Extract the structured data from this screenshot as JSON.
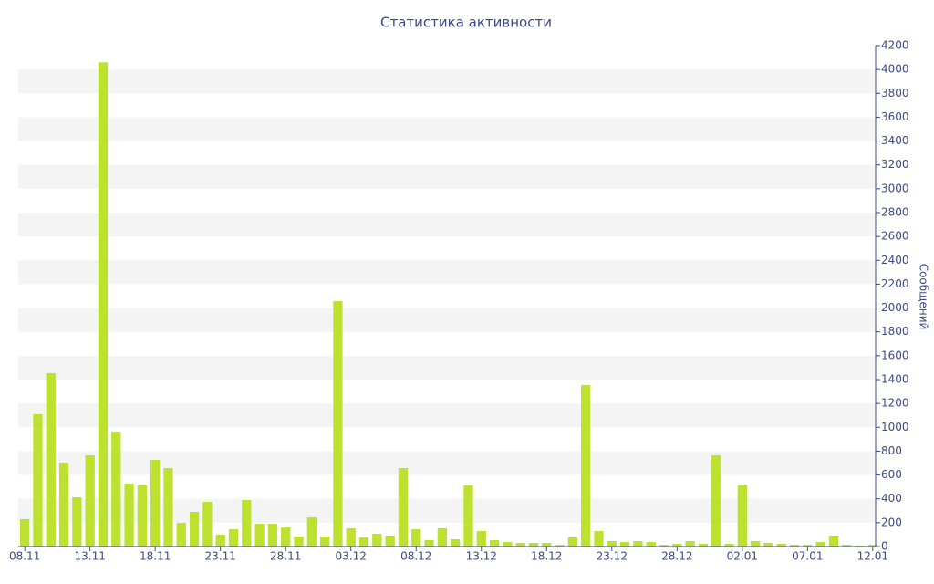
{
  "chart_data": {
    "type": "bar",
    "title": "Статистика активности",
    "y_axis_label": "Сообщений",
    "categories": [
      "08.11",
      null,
      null,
      null,
      null,
      "13.11",
      null,
      null,
      null,
      null,
      "18.11",
      null,
      null,
      null,
      null,
      "23.11",
      null,
      null,
      null,
      null,
      "28.11",
      null,
      null,
      null,
      null,
      "03.12",
      null,
      null,
      null,
      null,
      "08.12",
      null,
      null,
      null,
      null,
      "13.12",
      null,
      null,
      null,
      null,
      "18.12",
      null,
      null,
      null,
      null,
      "23.12",
      null,
      null,
      null,
      null,
      "28.12",
      null,
      null,
      null,
      null,
      "02.01",
      null,
      null,
      null,
      null,
      "07.01",
      null,
      null,
      null,
      null,
      "12.01"
    ],
    "values": [
      230,
      1110,
      1454,
      704,
      413,
      765,
      4060,
      964,
      528,
      513,
      727,
      658,
      199,
      291,
      375,
      99,
      145,
      390,
      191,
      191,
      160,
      84,
      245,
      84,
      2058,
      153,
      77,
      107,
      92,
      658,
      145,
      54,
      153,
      61,
      513,
      130,
      54,
      38,
      31,
      31,
      31,
      15,
      77,
      1354,
      130,
      46,
      38,
      46,
      38,
      15,
      23,
      46,
      23,
      765,
      23,
      520,
      46,
      31,
      23,
      15,
      15,
      38,
      92,
      15,
      8,
      15
    ],
    "color": "#bce22f",
    "ylim": [
      0,
      4200
    ],
    "yticks": [
      0,
      200,
      400,
      600,
      800,
      1000,
      1200,
      1400,
      1600,
      1800,
      2000,
      2200,
      2400,
      2600,
      2800,
      3000,
      3200,
      3400,
      3600,
      3800,
      4000,
      4200
    ],
    "grid": "bands"
  }
}
